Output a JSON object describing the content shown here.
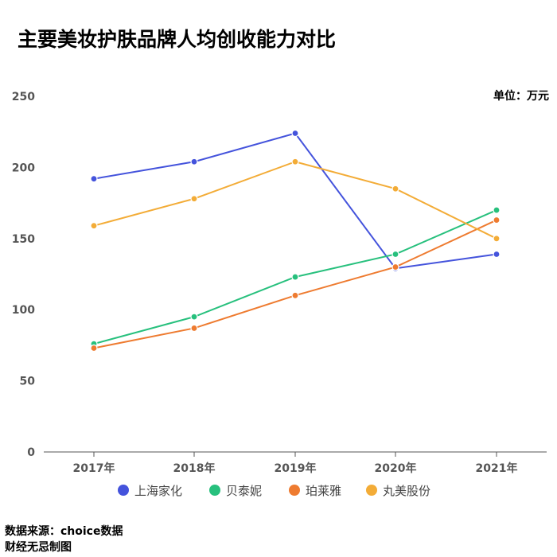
{
  "title": "主要美妆护肤品牌人均创收能力对比",
  "unit": "单位：万元",
  "footer": {
    "source": "数据来源：choice数据",
    "credit": "财经无忌制图"
  },
  "chart_data": {
    "type": "line",
    "title": "主要美妆护肤品牌人均创收能力对比",
    "ylabel": "单位：万元",
    "xlabel": "",
    "ylim": [
      0,
      250
    ],
    "yticks": [
      0,
      50,
      100,
      150,
      200,
      250
    ],
    "categories": [
      "2017年",
      "2018年",
      "2019年",
      "2020年",
      "2021年"
    ],
    "legend_position": "bottom",
    "grid": false,
    "series": [
      {
        "name": "上海家化",
        "color": "#4453dc",
        "values": [
          192,
          204,
          224,
          129,
          139
        ]
      },
      {
        "name": "贝泰妮",
        "color": "#27c07d",
        "values": [
          76,
          95,
          123,
          139,
          170
        ]
      },
      {
        "name": "珀莱雅",
        "color": "#ee7b30",
        "values": [
          73,
          87,
          110,
          130,
          163
        ]
      },
      {
        "name": "丸美股份",
        "color": "#f3ac37",
        "values": [
          159,
          178,
          204,
          185,
          150
        ]
      }
    ]
  }
}
